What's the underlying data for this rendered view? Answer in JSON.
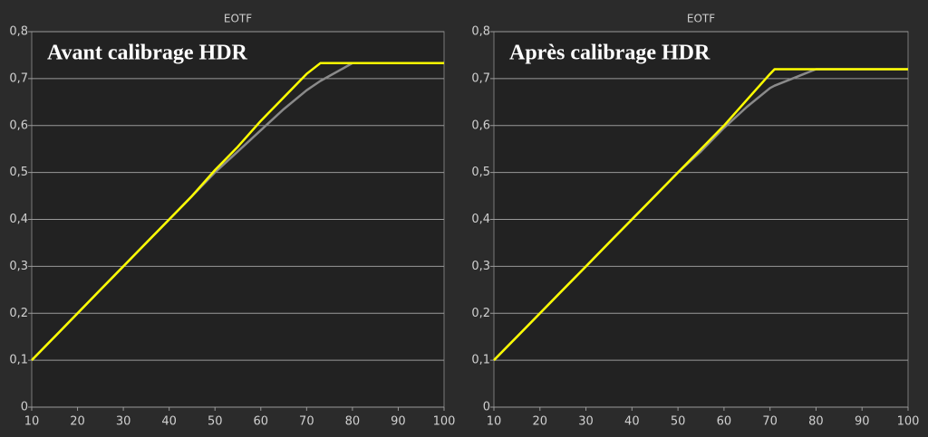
{
  "chart_data": [
    {
      "type": "line",
      "title": "EOTF",
      "annotation": "Avant calibrage HDR",
      "x": [
        10,
        15,
        20,
        25,
        30,
        35,
        40,
        45,
        50,
        55,
        60,
        65,
        70,
        73,
        80,
        85,
        90,
        95,
        100
      ],
      "series": [
        {
          "color": "#ffff00",
          "values": [
            0.1,
            0.15,
            0.2,
            0.25,
            0.3,
            0.35,
            0.4,
            0.45,
            0.505,
            0.555,
            0.61,
            0.66,
            0.71,
            0.733,
            0.733,
            0.733,
            0.733,
            0.733,
            0.733
          ]
        },
        {
          "color": "#8a8a8a",
          "values": [
            0.1,
            0.15,
            0.2,
            0.25,
            0.3,
            0.35,
            0.4,
            0.45,
            0.5,
            0.545,
            0.59,
            0.635,
            0.675,
            0.695,
            0.733,
            0.733,
            0.733,
            0.733,
            0.733
          ]
        }
      ],
      "xlim": [
        10,
        100
      ],
      "ylim": [
        0,
        0.8
      ],
      "xticks": [
        10,
        20,
        30,
        40,
        50,
        60,
        70,
        80,
        90,
        100
      ],
      "yticks": [
        0,
        {
          "value": 0.1,
          "label": "0,1"
        },
        {
          "value": 0.2,
          "label": "0,2"
        },
        {
          "value": 0.3,
          "label": "0,3"
        },
        {
          "value": 0.4,
          "label": "0,4"
        },
        {
          "value": 0.5,
          "label": "0,5"
        },
        {
          "value": 0.6,
          "label": "0,6"
        },
        {
          "value": 0.7,
          "label": "0,7"
        },
        {
          "value": 0.8,
          "label": "0,8"
        }
      ],
      "grid": true
    },
    {
      "type": "line",
      "title": "EOTF",
      "annotation": "Après calibrage HDR",
      "x": [
        10,
        15,
        20,
        25,
        30,
        35,
        40,
        45,
        50,
        55,
        60,
        65,
        70,
        71,
        80,
        85,
        90,
        95,
        100
      ],
      "series": [
        {
          "color": "#ffff00",
          "values": [
            0.1,
            0.15,
            0.2,
            0.25,
            0.3,
            0.35,
            0.4,
            0.45,
            0.5,
            0.55,
            0.6,
            0.655,
            0.71,
            0.72,
            0.72,
            0.72,
            0.72,
            0.72,
            0.72
          ]
        },
        {
          "color": "#8a8a8a",
          "values": [
            0.1,
            0.15,
            0.2,
            0.25,
            0.3,
            0.35,
            0.4,
            0.45,
            0.5,
            0.545,
            0.595,
            0.64,
            0.68,
            0.685,
            0.72,
            0.72,
            0.72,
            0.72,
            0.72
          ]
        }
      ],
      "xlim": [
        10,
        100
      ],
      "ylim": [
        0,
        0.8
      ],
      "xticks": [
        10,
        20,
        30,
        40,
        50,
        60,
        70,
        80,
        90,
        100
      ],
      "yticks": [
        0,
        {
          "value": 0.1,
          "label": "0,1"
        },
        {
          "value": 0.2,
          "label": "0,2"
        },
        {
          "value": 0.3,
          "label": "0,3"
        },
        {
          "value": 0.4,
          "label": "0,4"
        },
        {
          "value": 0.5,
          "label": "0,5"
        },
        {
          "value": 0.6,
          "label": "0,6"
        },
        {
          "value": 0.7,
          "label": "0,7"
        },
        {
          "value": 0.8,
          "label": "0,8"
        }
      ],
      "grid": true
    }
  ]
}
